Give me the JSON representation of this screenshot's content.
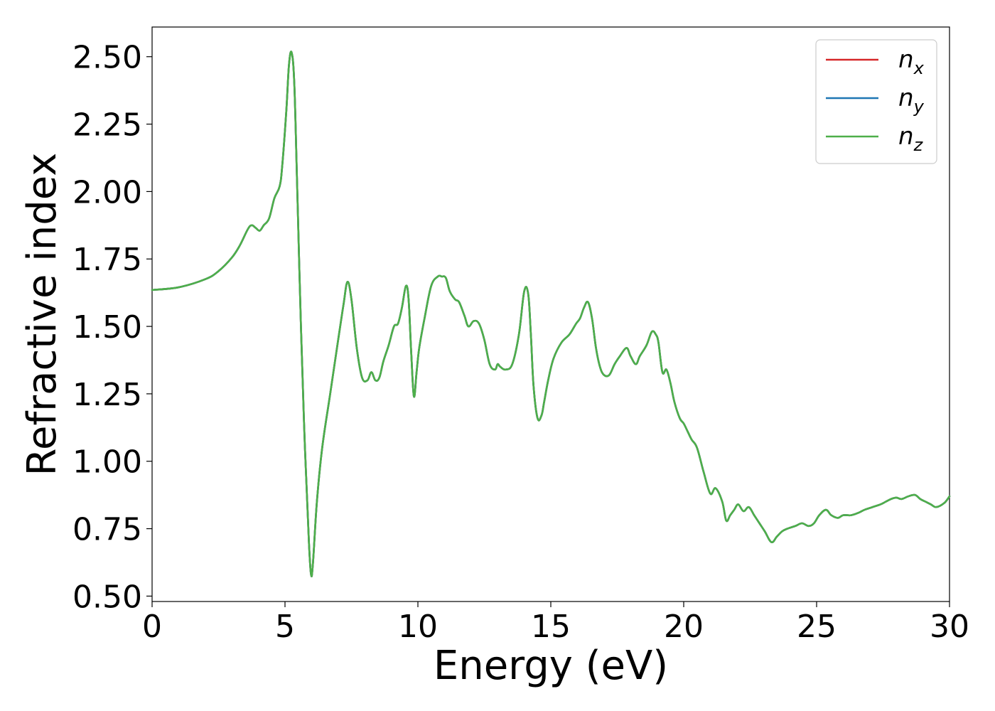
{
  "chart_data": {
    "type": "line",
    "title": "",
    "xlabel": "Energy (eV)",
    "ylabel": "Refractive index",
    "xlim": [
      0,
      30
    ],
    "ylim": [
      0.48,
      2.61
    ],
    "xticks": [
      0,
      5,
      10,
      15,
      20,
      25,
      30
    ],
    "xtick_labels": [
      "0",
      "5",
      "10",
      "15",
      "20",
      "25",
      "30"
    ],
    "yticks": [
      0.5,
      0.75,
      1.0,
      1.25,
      1.5,
      1.75,
      2.0,
      2.25,
      2.5
    ],
    "ytick_labels": [
      "0.50",
      "0.75",
      "1.00",
      "1.25",
      "1.50",
      "1.75",
      "2.00",
      "2.25",
      "2.50"
    ],
    "grid": false,
    "legend_position": "top-right",
    "x": [
      0,
      1,
      2,
      2.5,
      3,
      3.3,
      3.6,
      3.75,
      3.9,
      4.05,
      4.2,
      4.4,
      4.6,
      4.8,
      4.9,
      5.05,
      5.15,
      5.25,
      5.35,
      5.45,
      5.6,
      5.75,
      5.9,
      5.98,
      6.05,
      6.2,
      6.4,
      6.7,
      7.0,
      7.2,
      7.35,
      7.5,
      7.7,
      7.9,
      8.1,
      8.25,
      8.4,
      8.55,
      8.7,
      8.9,
      9.1,
      9.25,
      9.4,
      9.55,
      9.65,
      9.75,
      9.85,
      9.95,
      10.05,
      10.25,
      10.5,
      10.75,
      10.9,
      11.05,
      11.2,
      11.4,
      11.55,
      11.75,
      11.9,
      12.1,
      12.3,
      12.5,
      12.7,
      12.9,
      13.0,
      13.1,
      13.3,
      13.55,
      13.8,
      14.0,
      14.15,
      14.25,
      14.35,
      14.5,
      14.65,
      14.75,
      14.9,
      15.1,
      15.4,
      15.7,
      15.95,
      16.1,
      16.25,
      16.4,
      16.55,
      16.7,
      16.85,
      17.0,
      17.2,
      17.4,
      17.6,
      17.85,
      18.0,
      18.2,
      18.35,
      18.6,
      18.8,
      18.95,
      19.05,
      19.2,
      19.35,
      19.5,
      19.65,
      19.85,
      20.0,
      20.15,
      20.3,
      20.5,
      20.75,
      21.0,
      21.2,
      21.45,
      21.6,
      21.75,
      21.9,
      22.05,
      22.25,
      22.45,
      22.65,
      22.85,
      23.05,
      23.3,
      23.5,
      23.7,
      23.9,
      24.2,
      24.45,
      24.7,
      24.9,
      25.1,
      25.35,
      25.55,
      25.8,
      26.0,
      26.3,
      26.6,
      26.8,
      27.1,
      27.4,
      27.6,
      27.8,
      28.0,
      28.2,
      28.45,
      28.7,
      28.9,
      29.1,
      29.3,
      29.5,
      29.8,
      30.0
    ],
    "series": [
      {
        "name": "n_x",
        "label_base": "n",
        "label_sub": "x",
        "color": "#d62728",
        "values": "same-as-nz"
      },
      {
        "name": "n_y",
        "label_base": "n",
        "label_sub": "y",
        "color": "#1f77b4",
        "values": "same-as-nz"
      },
      {
        "name": "n_z",
        "label_base": "n",
        "label_sub": "z",
        "color": "#4daf4a",
        "values": [
          1.635,
          1.645,
          1.675,
          1.705,
          1.755,
          1.8,
          1.86,
          1.875,
          1.865,
          1.855,
          1.875,
          1.9,
          1.975,
          2.02,
          2.1,
          2.3,
          2.47,
          2.515,
          2.4,
          2.05,
          1.5,
          1.05,
          0.7,
          0.58,
          0.62,
          0.85,
          1.05,
          1.25,
          1.45,
          1.58,
          1.665,
          1.6,
          1.42,
          1.31,
          1.3,
          1.33,
          1.3,
          1.31,
          1.37,
          1.43,
          1.5,
          1.51,
          1.57,
          1.65,
          1.6,
          1.4,
          1.24,
          1.33,
          1.42,
          1.53,
          1.65,
          1.685,
          1.685,
          1.68,
          1.63,
          1.6,
          1.59,
          1.54,
          1.5,
          1.52,
          1.51,
          1.45,
          1.36,
          1.34,
          1.36,
          1.35,
          1.34,
          1.36,
          1.47,
          1.63,
          1.62,
          1.47,
          1.28,
          1.16,
          1.17,
          1.22,
          1.3,
          1.38,
          1.44,
          1.47,
          1.51,
          1.53,
          1.57,
          1.59,
          1.53,
          1.42,
          1.35,
          1.32,
          1.32,
          1.36,
          1.39,
          1.42,
          1.39,
          1.36,
          1.39,
          1.43,
          1.48,
          1.47,
          1.44,
          1.33,
          1.34,
          1.29,
          1.22,
          1.16,
          1.14,
          1.11,
          1.08,
          1.05,
          0.96,
          0.88,
          0.9,
          0.85,
          0.78,
          0.8,
          0.82,
          0.84,
          0.815,
          0.83,
          0.8,
          0.77,
          0.74,
          0.7,
          0.72,
          0.74,
          0.75,
          0.76,
          0.77,
          0.76,
          0.77,
          0.8,
          0.82,
          0.8,
          0.79,
          0.8,
          0.8,
          0.81,
          0.82,
          0.83,
          0.84,
          0.85,
          0.86,
          0.865,
          0.86,
          0.87,
          0.875,
          0.86,
          0.85,
          0.84,
          0.83,
          0.845,
          0.87
        ]
      }
    ]
  }
}
